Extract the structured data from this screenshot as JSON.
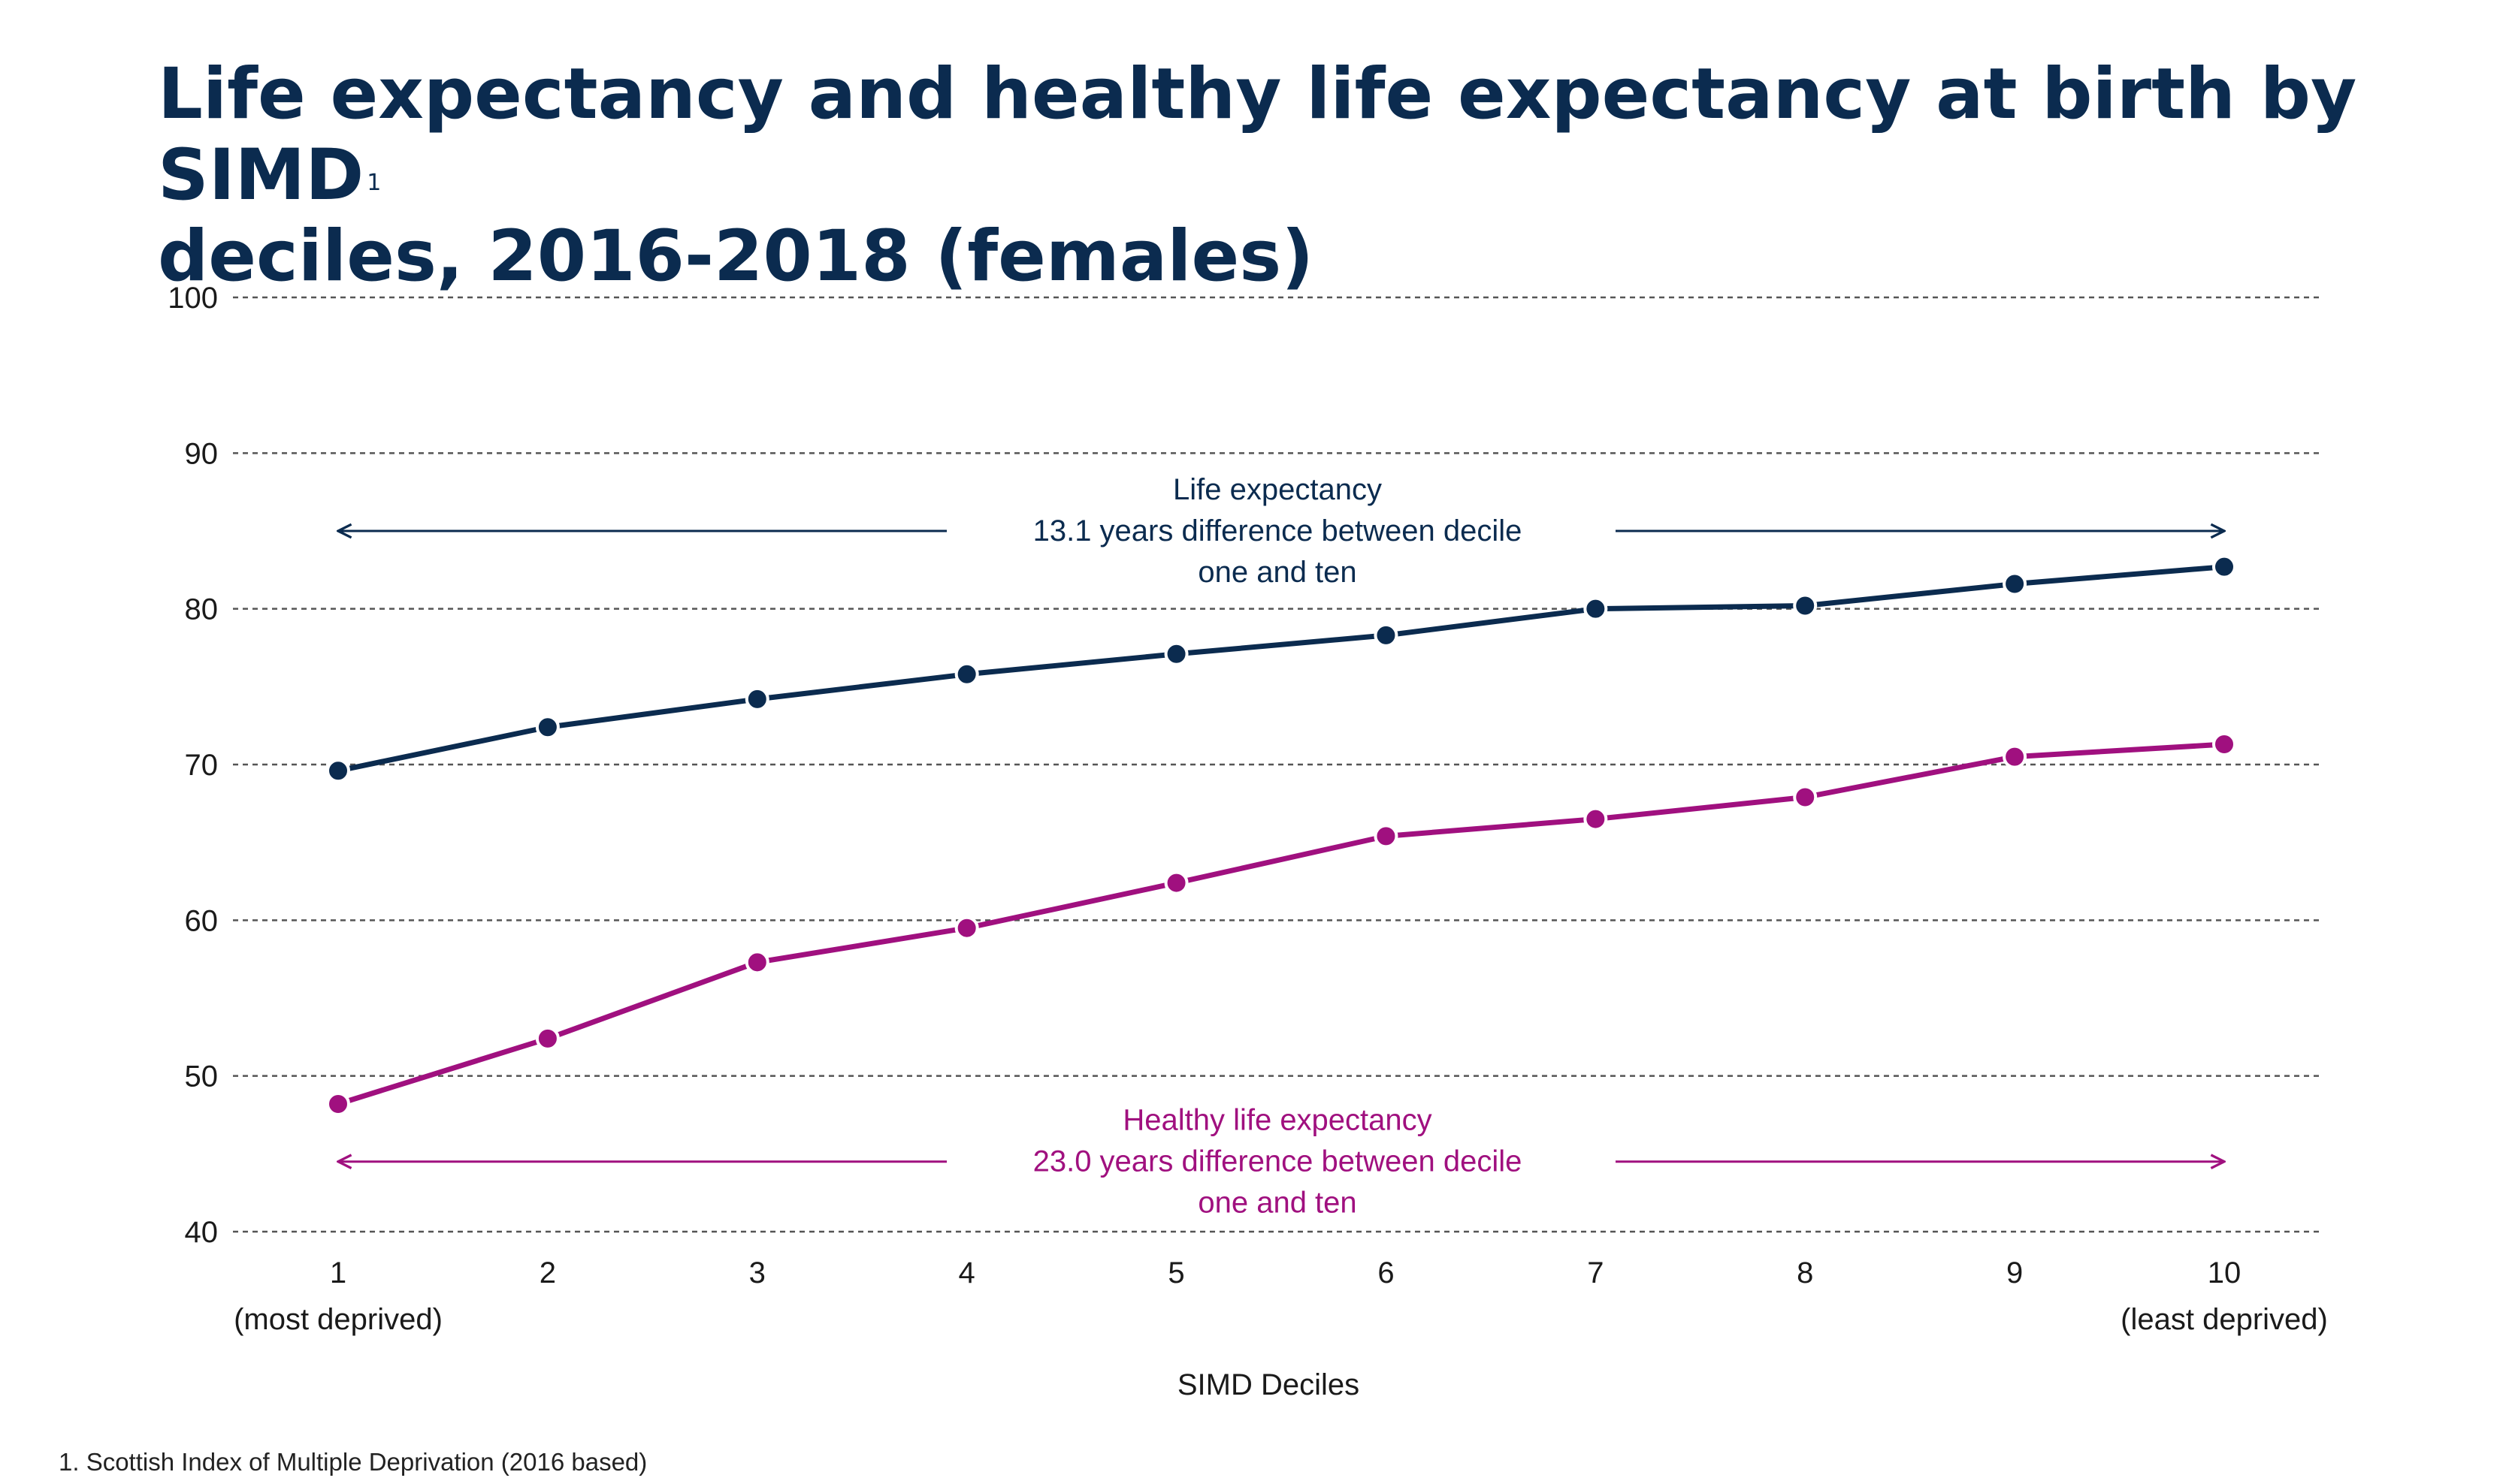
{
  "title_text": "Life expectancy and healthy life expectancy at birth by SIMD deciles, 2016-2018 (females)",
  "title_line1": "Life expectancy and healthy life expectancy at birth by SIMD",
  "title_sup": "1",
  "title_line2": "deciles, 2016-2018 (females)",
  "footnote": "1. Scottish Index of Multiple Deprivation (2016 based)",
  "colors": {
    "life": "#0b2b4f",
    "healthy": "#a0107f",
    "grid": "#555555",
    "text": "#1a1a1a"
  },
  "chart_data": {
    "type": "line",
    "title": "Life expectancy and healthy life expectancy at birth by SIMD deciles, 2016-2018 (females)",
    "x": [
      1,
      2,
      3,
      4,
      5,
      6,
      7,
      8,
      9,
      10
    ],
    "x_tick_labels": [
      "1",
      "2",
      "3",
      "4",
      "5",
      "6",
      "7",
      "8",
      "9",
      "10"
    ],
    "x_tick_sublabels": {
      "1": "(most deprived)",
      "10": "(least deprived)"
    },
    "xlabel": "SIMD Deciles",
    "ylabel": "",
    "ylim": [
      40,
      100
    ],
    "yticks": [
      40,
      50,
      60,
      70,
      80,
      90,
      100
    ],
    "grid": true,
    "legend": "none",
    "series": [
      {
        "name": "Life expectancy",
        "color": "#0b2b4f",
        "values": [
          69.6,
          72.4,
          74.2,
          75.8,
          77.1,
          78.3,
          80.0,
          80.2,
          81.6,
          82.7
        ]
      },
      {
        "name": "Healthy life expectancy",
        "color": "#a0107f",
        "values": [
          48.2,
          52.4,
          57.3,
          59.5,
          62.4,
          65.4,
          66.5,
          67.9,
          70.5,
          71.3
        ]
      }
    ],
    "annotations": [
      {
        "series": "Life expectancy",
        "lines": [
          "Life expectancy",
          "13.1 years difference between decile",
          "one and ten"
        ],
        "arrow_y": 85.0
      },
      {
        "series": "Healthy life expectancy",
        "lines": [
          "Healthy life expectancy",
          "23.0 years difference between decile",
          "one and ten"
        ],
        "arrow_y": 44.5
      }
    ]
  }
}
